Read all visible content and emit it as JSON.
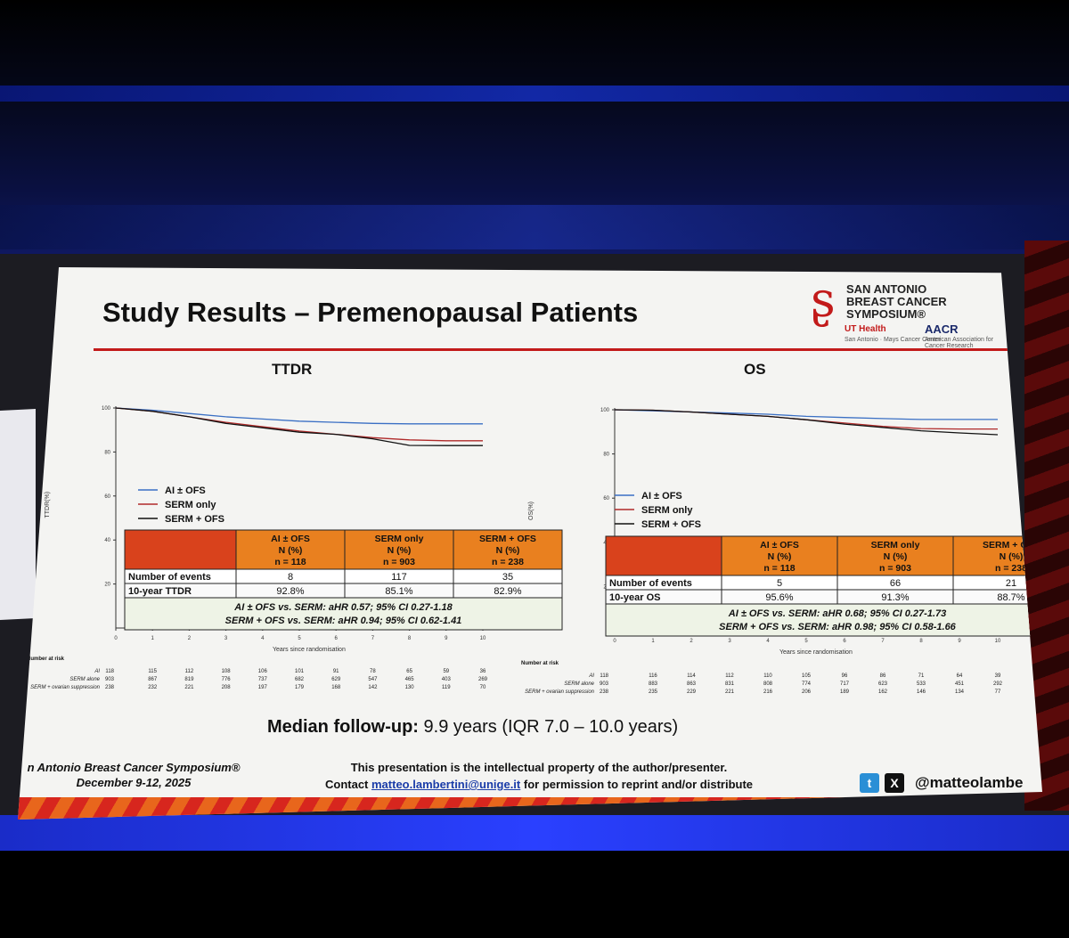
{
  "slide": {
    "title": "Study Results – Premenopausal Patients",
    "accent_color": "#c21a1a",
    "logo": {
      "name_lines": [
        "SAN ANTONIO",
        "BREAST CANCER",
        "SYMPOSIUM®"
      ],
      "ut_health": "UT Health",
      "ut_sub": "San Antonio · Mays Cancer Center",
      "aacr": "AACR",
      "aacr_sub": "American Association for Cancer Research"
    },
    "median_followup_label": "Median follow-up:",
    "median_followup_value": "9.9 years (IQR 7.0 – 10.0 years)",
    "footer": {
      "symposium": "n Antonio Breast Cancer Symposium®",
      "dates": "December 9-12, 2025",
      "ip_notice": "This presentation is the intellectual property of the author/presenter.",
      "contact_prefix": "Contact",
      "email": "matteo.lambertini@unige.it",
      "contact_suffix": "for permission to reprint and/or distribute",
      "handle": "@matteolambe",
      "social_icons": [
        "twitter-icon",
        "x-icon"
      ]
    }
  },
  "chart_data": [
    {
      "type": "line",
      "title": "TTDR",
      "ylabel": "TTDR(%)",
      "xlabel": "Years since randomisation",
      "ylim": [
        0,
        100
      ],
      "xlim": [
        0,
        10
      ],
      "yticks": [
        20,
        40,
        60,
        80,
        100
      ],
      "xticks": [
        0,
        1,
        2,
        3,
        4,
        5,
        6,
        7,
        8,
        9,
        10
      ],
      "legend": [
        "AI ± OFS",
        "SERM only",
        "SERM + OFS"
      ],
      "series": [
        {
          "name": "AI ± OFS",
          "color": "#3a6fc4",
          "x": [
            0,
            1,
            2,
            3,
            4,
            5,
            6,
            7,
            8,
            9,
            10
          ],
          "y": [
            100,
            99,
            97.5,
            96,
            95,
            94,
            93.5,
            93,
            92.8,
            92.8,
            92.8
          ]
        },
        {
          "name": "SERM only",
          "color": "#b02a2a",
          "x": [
            0,
            1,
            2,
            3,
            4,
            5,
            6,
            7,
            8,
            9,
            10
          ],
          "y": [
            100,
            98.5,
            96,
            93.5,
            91.5,
            89.5,
            88,
            86.5,
            85.5,
            85.1,
            85.1
          ]
        },
        {
          "name": "SERM + OFS",
          "color": "#111111",
          "x": [
            0,
            1,
            2,
            3,
            4,
            5,
            6,
            7,
            8,
            9,
            10
          ],
          "y": [
            100,
            98.5,
            96,
            93,
            91,
            89,
            88,
            86,
            83,
            82.9,
            82.9
          ]
        }
      ],
      "table": {
        "headers": [
          [
            "AI ± OFS",
            "N (%)",
            "n = 118"
          ],
          [
            "SERM only",
            "N (%)",
            "n = 903"
          ],
          [
            "SERM + OFS",
            "N (%)",
            "n = 238"
          ]
        ],
        "rows": [
          {
            "label": "Number of events",
            "values": [
              "8",
              "117",
              "35"
            ]
          },
          {
            "label": "10-year TTDR",
            "values": [
              "92.8%",
              "85.1%",
              "82.9%"
            ]
          }
        ],
        "hr_lines": [
          "AI ± OFS vs. SERM: aHR 0.57; 95% CI 0.27-1.18",
          "SERM + OFS vs. SERM: aHR 0.94; 95% CI 0.62-1.41"
        ]
      },
      "risk_table": {
        "title": "Number at risk",
        "rows": [
          {
            "label": "AI",
            "n0": "118",
            "values": [
              "115",
              "112",
              "108",
              "106",
              "101",
              "91",
              "78",
              "65",
              "59",
              "36"
            ]
          },
          {
            "label": "SERM alone",
            "n0": "903",
            "values": [
              "867",
              "819",
              "776",
              "737",
              "682",
              "629",
              "547",
              "465",
              "403",
              "269"
            ]
          },
          {
            "label": "SERM + ovarian suppression",
            "n0": "238",
            "values": [
              "232",
              "221",
              "208",
              "197",
              "179",
              "168",
              "142",
              "130",
              "119",
              "70"
            ]
          }
        ]
      }
    },
    {
      "type": "line",
      "title": "OS",
      "ylabel": "OS(%)",
      "xlabel": "Years since randomisation",
      "ylim": [
        0,
        100
      ],
      "xlim": [
        0,
        10
      ],
      "yticks": [
        20,
        40,
        60,
        80,
        100
      ],
      "xticks": [
        0,
        1,
        2,
        3,
        4,
        5,
        6,
        7,
        8,
        9,
        10
      ],
      "legend": [
        "AI ± OFS",
        "SERM only",
        "SERM + OFS"
      ],
      "series": [
        {
          "name": "AI ± OFS",
          "color": "#3a6fc4",
          "x": [
            0,
            1,
            2,
            3,
            4,
            5,
            6,
            7,
            8,
            9,
            10
          ],
          "y": [
            100,
            99.5,
            99,
            98.5,
            98,
            97,
            96.5,
            96,
            95.6,
            95.6,
            95.6
          ]
        },
        {
          "name": "SERM only",
          "color": "#b02a2a",
          "x": [
            0,
            1,
            2,
            3,
            4,
            5,
            6,
            7,
            8,
            9,
            10
          ],
          "y": [
            100,
            99.8,
            99,
            98,
            97,
            95.5,
            94,
            92.5,
            91.5,
            91.3,
            91.3
          ]
        },
        {
          "name": "SERM + OFS",
          "color": "#111111",
          "x": [
            0,
            1,
            2,
            3,
            4,
            5,
            6,
            7,
            8,
            9,
            10
          ],
          "y": [
            100,
            99.8,
            99,
            98,
            97,
            95.5,
            93.5,
            92,
            90.5,
            89.5,
            88.7
          ]
        }
      ],
      "table": {
        "headers": [
          [
            "AI ± OFS",
            "N (%)",
            "n = 118"
          ],
          [
            "SERM only",
            "N (%)",
            "n = 903"
          ],
          [
            "SERM + OFS",
            "N (%)",
            "n = 238"
          ]
        ],
        "rows": [
          {
            "label": "Number of events",
            "values": [
              "5",
              "66",
              "21"
            ]
          },
          {
            "label": "10-year OS",
            "values": [
              "95.6%",
              "91.3%",
              "88.7%"
            ]
          }
        ],
        "hr_lines": [
          "AI ± OFS vs. SERM: aHR 0.68; 95% CI 0.27-1.73",
          "SERM + OFS vs. SERM: aHR 0.98; 95% CI 0.58-1.66"
        ]
      },
      "risk_table": {
        "title": "Number at risk",
        "rows": [
          {
            "label": "AI",
            "n0": "118",
            "values": [
              "116",
              "114",
              "112",
              "110",
              "105",
              "96",
              "86",
              "71",
              "64",
              "39"
            ]
          },
          {
            "label": "SERM alone",
            "n0": "903",
            "values": [
              "883",
              "863",
              "831",
              "808",
              "774",
              "717",
              "623",
              "533",
              "451",
              "292"
            ]
          },
          {
            "label": "SERM + ovarian suppression",
            "n0": "238",
            "values": [
              "235",
              "229",
              "221",
              "216",
              "206",
              "189",
              "162",
              "146",
              "134",
              "77"
            ]
          }
        ]
      }
    }
  ]
}
